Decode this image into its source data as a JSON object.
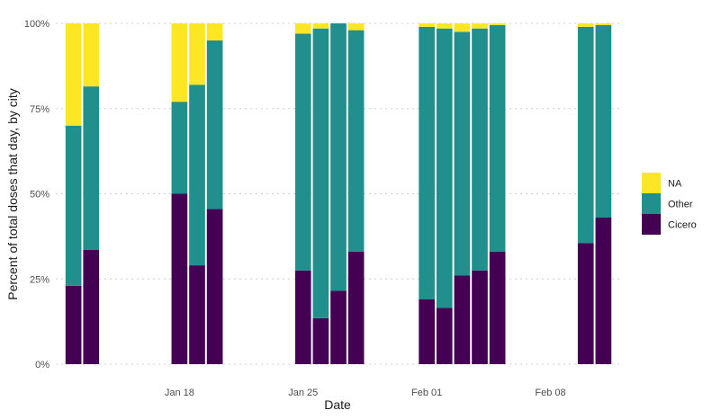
{
  "chart_data": {
    "type": "bar",
    "stacked": true,
    "xlabel": "Date",
    "ylabel": "Percent of total doses that day, by city",
    "ylim": [
      0,
      1
    ],
    "y_ticks": [
      {
        "value": 0,
        "label": "0%"
      },
      {
        "value": 0.25,
        "label": "25%"
      },
      {
        "value": 0.5,
        "label": "50%"
      },
      {
        "value": 0.75,
        "label": "75%"
      },
      {
        "value": 1,
        "label": "100%"
      }
    ],
    "x_range": [
      "2021-01-11",
      "2021-02-12"
    ],
    "x_ticks": [
      {
        "date": "2021-01-18",
        "label": "Jan 18"
      },
      {
        "date": "2021-01-25",
        "label": "Jan 25"
      },
      {
        "date": "2021-02-01",
        "label": "Feb 01"
      },
      {
        "date": "2021-02-08",
        "label": "Feb 08"
      }
    ],
    "grid": true,
    "legend_position": "right",
    "legend": [
      {
        "name": "NA",
        "color": "#FDE725"
      },
      {
        "name": "Other",
        "color": "#21908C"
      },
      {
        "name": "Cicero",
        "color": "#440154"
      }
    ],
    "x": [
      "2021-01-12",
      "2021-01-13",
      "2021-01-18",
      "2021-01-19",
      "2021-01-20",
      "2021-01-25",
      "2021-01-26",
      "2021-01-27",
      "2021-01-28",
      "2021-02-01",
      "2021-02-02",
      "2021-02-03",
      "2021-02-04",
      "2021-02-05",
      "2021-02-10",
      "2021-02-11"
    ],
    "series": [
      {
        "name": "Cicero",
        "color": "#440154",
        "values": [
          0.23,
          0.335,
          0.5,
          0.29,
          0.455,
          0.275,
          0.135,
          0.215,
          0.33,
          0.19,
          0.165,
          0.26,
          0.275,
          0.33,
          0.355,
          0.43
        ]
      },
      {
        "name": "Other",
        "color": "#21908C",
        "values": [
          0.47,
          0.48,
          0.27,
          0.53,
          0.495,
          0.695,
          0.85,
          0.785,
          0.65,
          0.8,
          0.82,
          0.715,
          0.71,
          0.665,
          0.635,
          0.565
        ]
      },
      {
        "name": "NA",
        "color": "#FDE725",
        "values": [
          0.3,
          0.185,
          0.23,
          0.18,
          0.05,
          0.03,
          0.015,
          0.0,
          0.02,
          0.01,
          0.015,
          0.025,
          0.015,
          0.005,
          0.01,
          0.005
        ]
      }
    ]
  }
}
